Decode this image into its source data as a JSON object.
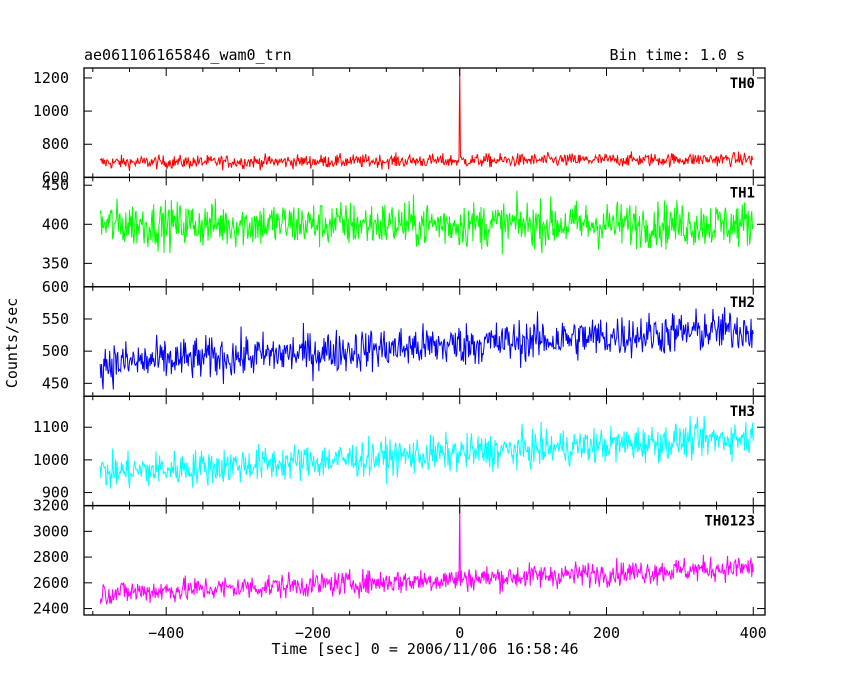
{
  "header": {
    "source_name": "ae061106165846_wam0_trn",
    "bin_time": "Bin time: 1.0 s"
  },
  "chart_data": {
    "type": "line",
    "xlabel": "Time [sec] 0 = 2006/11/06 16:58:46",
    "ylabel": "Counts/sec",
    "xlim": [
      -512,
      416
    ],
    "x_ticks": [
      -400,
      -200,
      0,
      200,
      400
    ],
    "x_tick_labels": [
      "−400",
      "−200",
      "0",
      "200",
      "400"
    ],
    "panels": [
      {
        "name": "TH0",
        "color": "#ff0000",
        "ylim": [
          600,
          1260
        ],
        "y_ticks": [
          600,
          800,
          1000,
          1200
        ],
        "y_tick_labels": [
          "600",
          "800",
          "1000",
          "1200"
        ],
        "trend_start": 690,
        "trend_end": 710,
        "noise": 55,
        "spike": {
          "x": 0,
          "y": 1260
        }
      },
      {
        "name": "TH1",
        "color": "#00ff00",
        "ylim": [
          320,
          460
        ],
        "y_ticks": [
          350,
          400,
          450
        ],
        "y_tick_labels": [
          "350",
          "400",
          "450"
        ],
        "trend_start": 400,
        "trend_end": 400,
        "noise": 40,
        "spike": null
      },
      {
        "name": "TH2",
        "color": "#0000ff",
        "ylim": [
          430,
          600
        ],
        "y_ticks": [
          450,
          500,
          550,
          600
        ],
        "y_tick_labels": [
          "450",
          "500",
          "550",
          "600"
        ],
        "trend_start": 480,
        "trend_end": 535,
        "noise": 45,
        "spike": null
      },
      {
        "name": "TH3",
        "color": "#00ffff",
        "ylim": [
          860,
          1195
        ],
        "y_ticks": [
          900,
          1000,
          1100
        ],
        "y_tick_labels": [
          "900",
          "1000",
          "1100"
        ],
        "trend_start": 960,
        "trend_end": 1070,
        "noise": 75,
        "spike": null
      },
      {
        "name": "TH0123",
        "color": "#ff00ff",
        "ylim": [
          2350,
          3200
        ],
        "y_ticks": [
          2400,
          2600,
          2800,
          3000,
          3200
        ],
        "y_tick_labels": [
          "2400",
          "2600",
          "2800",
          "3000",
          "3200"
        ],
        "trend_start": 2520,
        "trend_end": 2720,
        "noise": 130,
        "spike": {
          "x": 0,
          "y": 3200
        }
      }
    ]
  }
}
